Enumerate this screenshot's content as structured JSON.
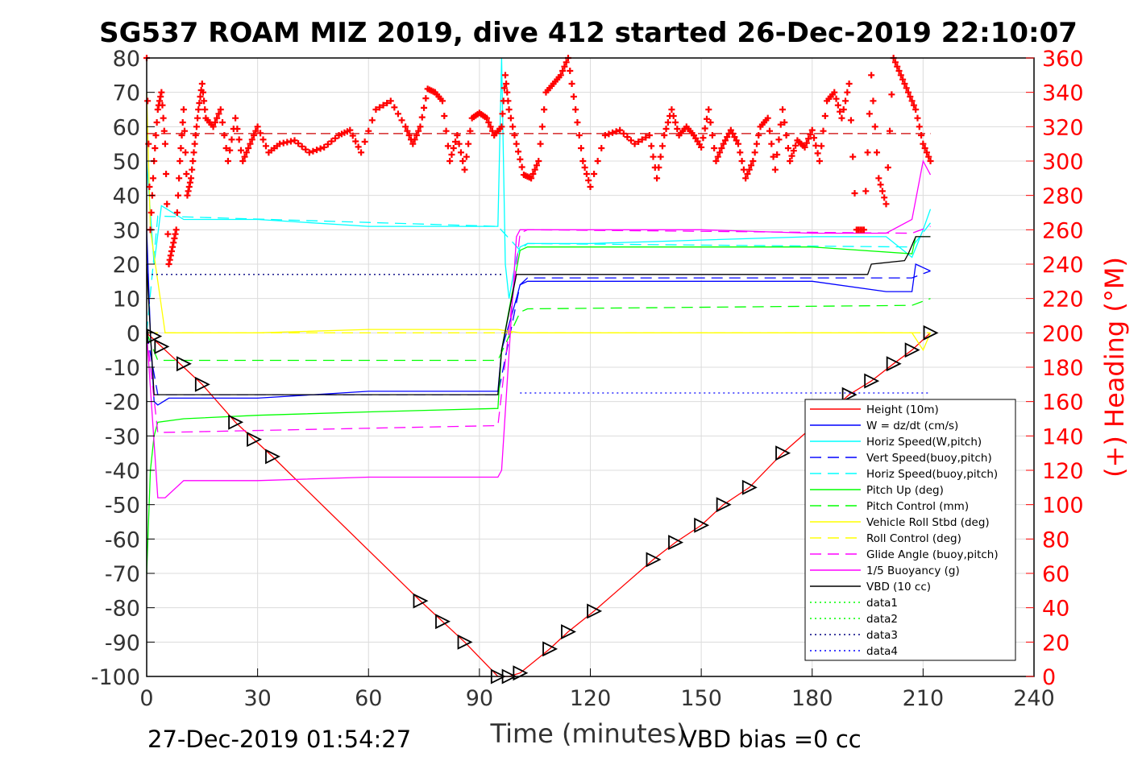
{
  "chart_data": {
    "type": "line",
    "title": "SG537 ROAM MIZ 2019, dive 412 started 26-Dec-2019 22:10:07",
    "xlabel": "Time (minutes)",
    "ylabel_right": "(+) Heading (°M)",
    "xlim": [
      0,
      240
    ],
    "ylim_left": [
      -100,
      80
    ],
    "ylim_right": [
      0,
      360
    ],
    "x_ticks": [
      "0",
      "30",
      "60",
      "90",
      "120",
      "150",
      "180",
      "210",
      "240"
    ],
    "y_ticks_left": [
      "80",
      "70",
      "60",
      "50",
      "40",
      "30",
      "20",
      "10",
      "0",
      "-10",
      "-20",
      "-30",
      "-40",
      "-50",
      "-60",
      "-70",
      "-80",
      "-90",
      "-100"
    ],
    "y_ticks_right": [
      "360",
      "340",
      "320",
      "300",
      "280",
      "260",
      "240",
      "220",
      "200",
      "180",
      "160",
      "140",
      "120",
      "100",
      "80",
      "60",
      "40",
      "20",
      "0"
    ],
    "grid": true,
    "legend_position": "lower-right",
    "footer_left": "27-Dec-2019 01:54:27",
    "footer_right": "VBD bias =0 cc",
    "colors": {
      "height": "#ff0000",
      "w": "#0000ff",
      "hspeed": "#00ffff",
      "vspeed": "#0000ff",
      "hspeed_buoy": "#00ffff",
      "pitch": "#00ff00",
      "pitch_control": "#00ff00",
      "roll": "#ffff00",
      "roll_control": "#ffff00",
      "glide": "#ff00ff",
      "buoyancy": "#ff00ff",
      "vbd": "#000000",
      "heading": "#ff0000",
      "heading_mean": "#cc0000"
    },
    "legend": [
      {
        "label": "Height (10m)",
        "color": "#ff0000",
        "dash": "solid"
      },
      {
        "label": "W = dz/dt (cm/s)",
        "color": "#0000ff",
        "dash": "solid"
      },
      {
        "label": "Horiz Speed(W,pitch)",
        "color": "#00ffff",
        "dash": "solid"
      },
      {
        "label": "Vert Speed(buoy,pitch)",
        "color": "#0000ff",
        "dash": "dashed"
      },
      {
        "label": "Horiz Speed(buoy,pitch)",
        "color": "#00ffff",
        "dash": "dashed"
      },
      {
        "label": "Pitch Up (deg)",
        "color": "#00ff00",
        "dash": "solid"
      },
      {
        "label": "Pitch Control (mm)",
        "color": "#00ff00",
        "dash": "dashed"
      },
      {
        "label": "Vehicle Roll Stbd (deg)",
        "color": "#ffff00",
        "dash": "solid"
      },
      {
        "label": "Roll Control (deg)",
        "color": "#ffff00",
        "dash": "dashed"
      },
      {
        "label": "Glide Angle (buoy,pitch)",
        "color": "#ff00ff",
        "dash": "dashed"
      },
      {
        "label": "1/5 Buoyancy (g)",
        "color": "#ff00ff",
        "dash": "solid"
      },
      {
        "label": "VBD (10 cc)",
        "color": "#000000",
        "dash": "solid"
      },
      {
        "label": "data1",
        "color": "#00ff00",
        "dash": "dotted"
      },
      {
        "label": "data2",
        "color": "#00ff00",
        "dash": "dotted"
      },
      {
        "label": "data3",
        "color": "#000080",
        "dash": "dotted"
      },
      {
        "label": "data4",
        "color": "#0000ff",
        "dash": "dotted"
      }
    ],
    "series": [
      {
        "name": "Height (10m)",
        "axis": "left",
        "x": [
          0,
          2,
          5,
          10,
          15,
          24,
          29,
          34,
          74,
          80,
          86,
          95,
          98,
          101,
          109,
          114,
          121,
          137,
          143,
          150,
          156,
          163,
          172,
          190,
          196,
          202,
          207,
          212
        ],
        "y": [
          0,
          -2,
          -5,
          -10,
          -15,
          -26,
          -31,
          -36,
          -78,
          -84,
          -90,
          -100,
          -100,
          -99,
          -92,
          -87,
          -81,
          -66,
          -61,
          -56,
          -50,
          -45,
          -35,
          -18,
          -14,
          -9,
          -5,
          0
        ]
      },
      {
        "name": "W = dz/dt (cm/s)",
        "axis": "left",
        "x": [
          0,
          1,
          2,
          3,
          6,
          10,
          30,
          60,
          95,
          96,
          100,
          101,
          103,
          120,
          150,
          180,
          200,
          207,
          208,
          212
        ],
        "y": [
          30,
          0,
          -20,
          -21,
          -19,
          -19,
          -19,
          -17,
          -17,
          -5,
          10,
          14,
          15,
          15,
          15,
          15,
          12,
          12,
          20,
          18
        ]
      },
      {
        "name": "Horiz Speed(W,pitch)",
        "axis": "left",
        "x": [
          0,
          2,
          4,
          10,
          30,
          60,
          95,
          96,
          97,
          98,
          100,
          101,
          103,
          120,
          150,
          180,
          200,
          207,
          210,
          212
        ],
        "y": [
          50,
          20,
          37,
          33,
          33,
          31,
          31,
          80,
          20,
          10,
          22,
          25,
          26,
          26,
          27,
          28,
          28,
          22,
          30,
          36
        ]
      },
      {
        "name": "Vert Speed(buoy,pitch)",
        "axis": "left",
        "x": [
          0,
          3,
          95,
          101,
          103,
          207,
          212
        ],
        "y": [
          0,
          -18,
          -18,
          14,
          16,
          16,
          18
        ]
      },
      {
        "name": "Horiz Speed(buoy,pitch)",
        "axis": "left",
        "x": [
          0,
          3,
          95,
          101,
          103,
          207,
          212
        ],
        "y": [
          0,
          34,
          31,
          24,
          26,
          25,
          32
        ]
      },
      {
        "name": "Pitch Up (deg)",
        "axis": "left",
        "x": [
          0,
          1,
          2,
          3,
          10,
          30,
          60,
          95,
          96,
          101,
          103,
          120,
          150,
          180,
          207,
          208,
          212
        ],
        "y": [
          -70,
          -40,
          -30,
          -26,
          -25,
          -24,
          -23,
          -22,
          -5,
          24,
          25,
          25,
          25,
          25,
          23,
          28,
          28
        ]
      },
      {
        "name": "Pitch Control (mm)",
        "axis": "left",
        "x": [
          0,
          3,
          95,
          101,
          103,
          207,
          212
        ],
        "y": [
          0,
          -8,
          -8,
          6,
          7,
          8,
          10
        ]
      },
      {
        "name": "Vehicle Roll Stbd (deg)",
        "axis": "left",
        "x": [
          0,
          1,
          3,
          5,
          30,
          60,
          95,
          101,
          103,
          120,
          150,
          180,
          207,
          210,
          212
        ],
        "y": [
          70,
          30,
          15,
          0,
          0,
          1,
          1,
          0,
          0,
          0,
          0,
          0,
          0,
          -5,
          0
        ]
      },
      {
        "name": "Roll Control (deg)",
        "axis": "left",
        "x": [
          0,
          3,
          95,
          101,
          103,
          207,
          212
        ],
        "y": [
          0,
          0,
          0,
          0,
          0,
          0,
          0
        ]
      },
      {
        "name": "Glide Angle (buoy,pitch)",
        "axis": "left",
        "x": [
          0,
          3,
          95,
          101,
          103,
          207,
          212
        ],
        "y": [
          0,
          -29,
          -27,
          29,
          30,
          29,
          31
        ]
      },
      {
        "name": "1/5 Buoyancy (g)",
        "axis": "left",
        "x": [
          0,
          3,
          5,
          10,
          30,
          60,
          95,
          96,
          100,
          101,
          103,
          120,
          150,
          180,
          200,
          207,
          210,
          212
        ],
        "y": [
          0,
          -48,
          -48,
          -43,
          -43,
          -42,
          -42,
          -40,
          28,
          30,
          30,
          30,
          30,
          29,
          29,
          33,
          50,
          46
        ]
      },
      {
        "name": "VBD (10 cc)",
        "axis": "left",
        "x": [
          0,
          1,
          2,
          3,
          95,
          96,
          100,
          101,
          103,
          195,
          196,
          205,
          206,
          208,
          212
        ],
        "y": [
          20,
          0,
          -18,
          -18,
          -18,
          -5,
          17,
          17,
          17,
          17,
          20,
          21,
          23,
          28,
          28
        ]
      },
      {
        "name": "data3",
        "axis": "left",
        "x": [
          0,
          96
        ],
        "y": [
          17,
          17
        ]
      },
      {
        "name": "data4",
        "axis": "left",
        "x": [
          101,
          212
        ],
        "y": [
          -17.5,
          -17.5
        ]
      }
    ],
    "heading_mean": {
      "axis": "right",
      "x": [
        0,
        212
      ],
      "y": [
        316,
        316
      ]
    },
    "heading": {
      "name": "(+) Heading (°M)",
      "axis": "right",
      "x": [
        0,
        1,
        2,
        3,
        4,
        5,
        6,
        7,
        8,
        9,
        10,
        11,
        12,
        13,
        14,
        15,
        16,
        18,
        20,
        22,
        24,
        26,
        28,
        30,
        33,
        36,
        40,
        44,
        48,
        52,
        55,
        58,
        62,
        66,
        70,
        72,
        74,
        76,
        78,
        80,
        82,
        84,
        86,
        88,
        90,
        92,
        94,
        96,
        97,
        98,
        100,
        102,
        104,
        106,
        108,
        110,
        112,
        114,
        116,
        118,
        120,
        124,
        128,
        132,
        136,
        138,
        140,
        142,
        144,
        146,
        148,
        150,
        152,
        154,
        156,
        158,
        160,
        162,
        164,
        166,
        168,
        170,
        172,
        174,
        176,
        178,
        180,
        182,
        184,
        186,
        188,
        190,
        192,
        194,
        196,
        198,
        200,
        202,
        204,
        206,
        208,
        210,
        212
      ],
      "y": [
        360,
        260,
        300,
        330,
        340,
        310,
        240,
        250,
        260,
        300,
        330,
        280,
        290,
        310,
        330,
        345,
        325,
        320,
        330,
        300,
        325,
        300,
        310,
        320,
        305,
        310,
        312,
        305,
        308,
        315,
        318,
        305,
        330,
        335,
        320,
        310,
        320,
        342,
        340,
        335,
        300,
        315,
        295,
        325,
        328,
        325,
        315,
        320,
        350,
        330,
        310,
        292,
        290,
        300,
        340,
        345,
        350,
        360,
        330,
        300,
        285,
        315,
        318,
        310,
        315,
        290,
        315,
        330,
        315,
        320,
        315,
        308,
        330,
        300,
        310,
        318,
        310,
        290,
        300,
        320,
        325,
        295,
        330,
        300,
        312,
        308,
        318,
        300,
        335,
        340,
        325,
        345,
        260,
        260,
        350,
        290,
        275,
        360,
        350,
        340,
        330,
        310,
        300
      ]
    },
    "markers": {
      "x": [
        2,
        4,
        10,
        15,
        24,
        29,
        34,
        74,
        80,
        86,
        95,
        98,
        101,
        109,
        114,
        121,
        137,
        143,
        150,
        156,
        163,
        172,
        190,
        196,
        202,
        207,
        212
      ],
      "y": [
        -1,
        -4,
        -9,
        -15,
        -26,
        -31,
        -36,
        -78,
        -84,
        -90,
        -100,
        -100,
        -99,
        -92,
        -87,
        -81,
        -66,
        -61,
        -56,
        -50,
        -45,
        -35,
        -18,
        -14,
        -9,
        -5,
        0
      ]
    }
  }
}
